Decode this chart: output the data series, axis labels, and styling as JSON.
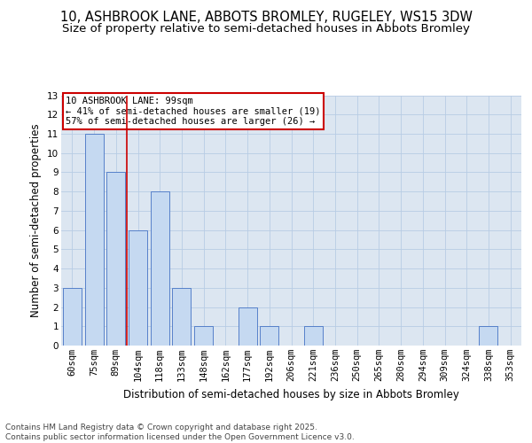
{
  "title_line1": "10, ASHBROOK LANE, ABBOTS BROMLEY, RUGELEY, WS15 3DW",
  "title_line2": "Size of property relative to semi-detached houses in Abbots Bromley",
  "xlabel": "Distribution of semi-detached houses by size in Abbots Bromley",
  "ylabel": "Number of semi-detached properties",
  "categories": [
    "60sqm",
    "75sqm",
    "89sqm",
    "104sqm",
    "118sqm",
    "133sqm",
    "148sqm",
    "162sqm",
    "177sqm",
    "192sqm",
    "206sqm",
    "221sqm",
    "236sqm",
    "250sqm",
    "265sqm",
    "280sqm",
    "294sqm",
    "309sqm",
    "324sqm",
    "338sqm",
    "353sqm"
  ],
  "values": [
    3,
    11,
    9,
    6,
    8,
    3,
    1,
    0,
    2,
    1,
    0,
    1,
    0,
    0,
    0,
    0,
    0,
    0,
    0,
    1,
    0
  ],
  "bar_color": "#c5d9f1",
  "bar_edge_color": "#4472c4",
  "grid_color": "#b8cce4",
  "background_color": "#dce6f1",
  "annotation_text": "10 ASHBROOK LANE: 99sqm\n← 41% of semi-detached houses are smaller (19)\n57% of semi-detached houses are larger (26) →",
  "annotation_box_color": "#ffffff",
  "annotation_box_edge": "#cc0000",
  "property_line_x": 2.5,
  "ylim": [
    0,
    13
  ],
  "yticks": [
    0,
    1,
    2,
    3,
    4,
    5,
    6,
    7,
    8,
    9,
    10,
    11,
    12,
    13
  ],
  "footer_text": "Contains HM Land Registry data © Crown copyright and database right 2025.\nContains public sector information licensed under the Open Government Licence v3.0.",
  "title_fontsize": 10.5,
  "subtitle_fontsize": 9.5,
  "axis_label_fontsize": 8.5,
  "tick_fontsize": 7.5,
  "footer_fontsize": 6.5,
  "annotation_fontsize": 7.5
}
